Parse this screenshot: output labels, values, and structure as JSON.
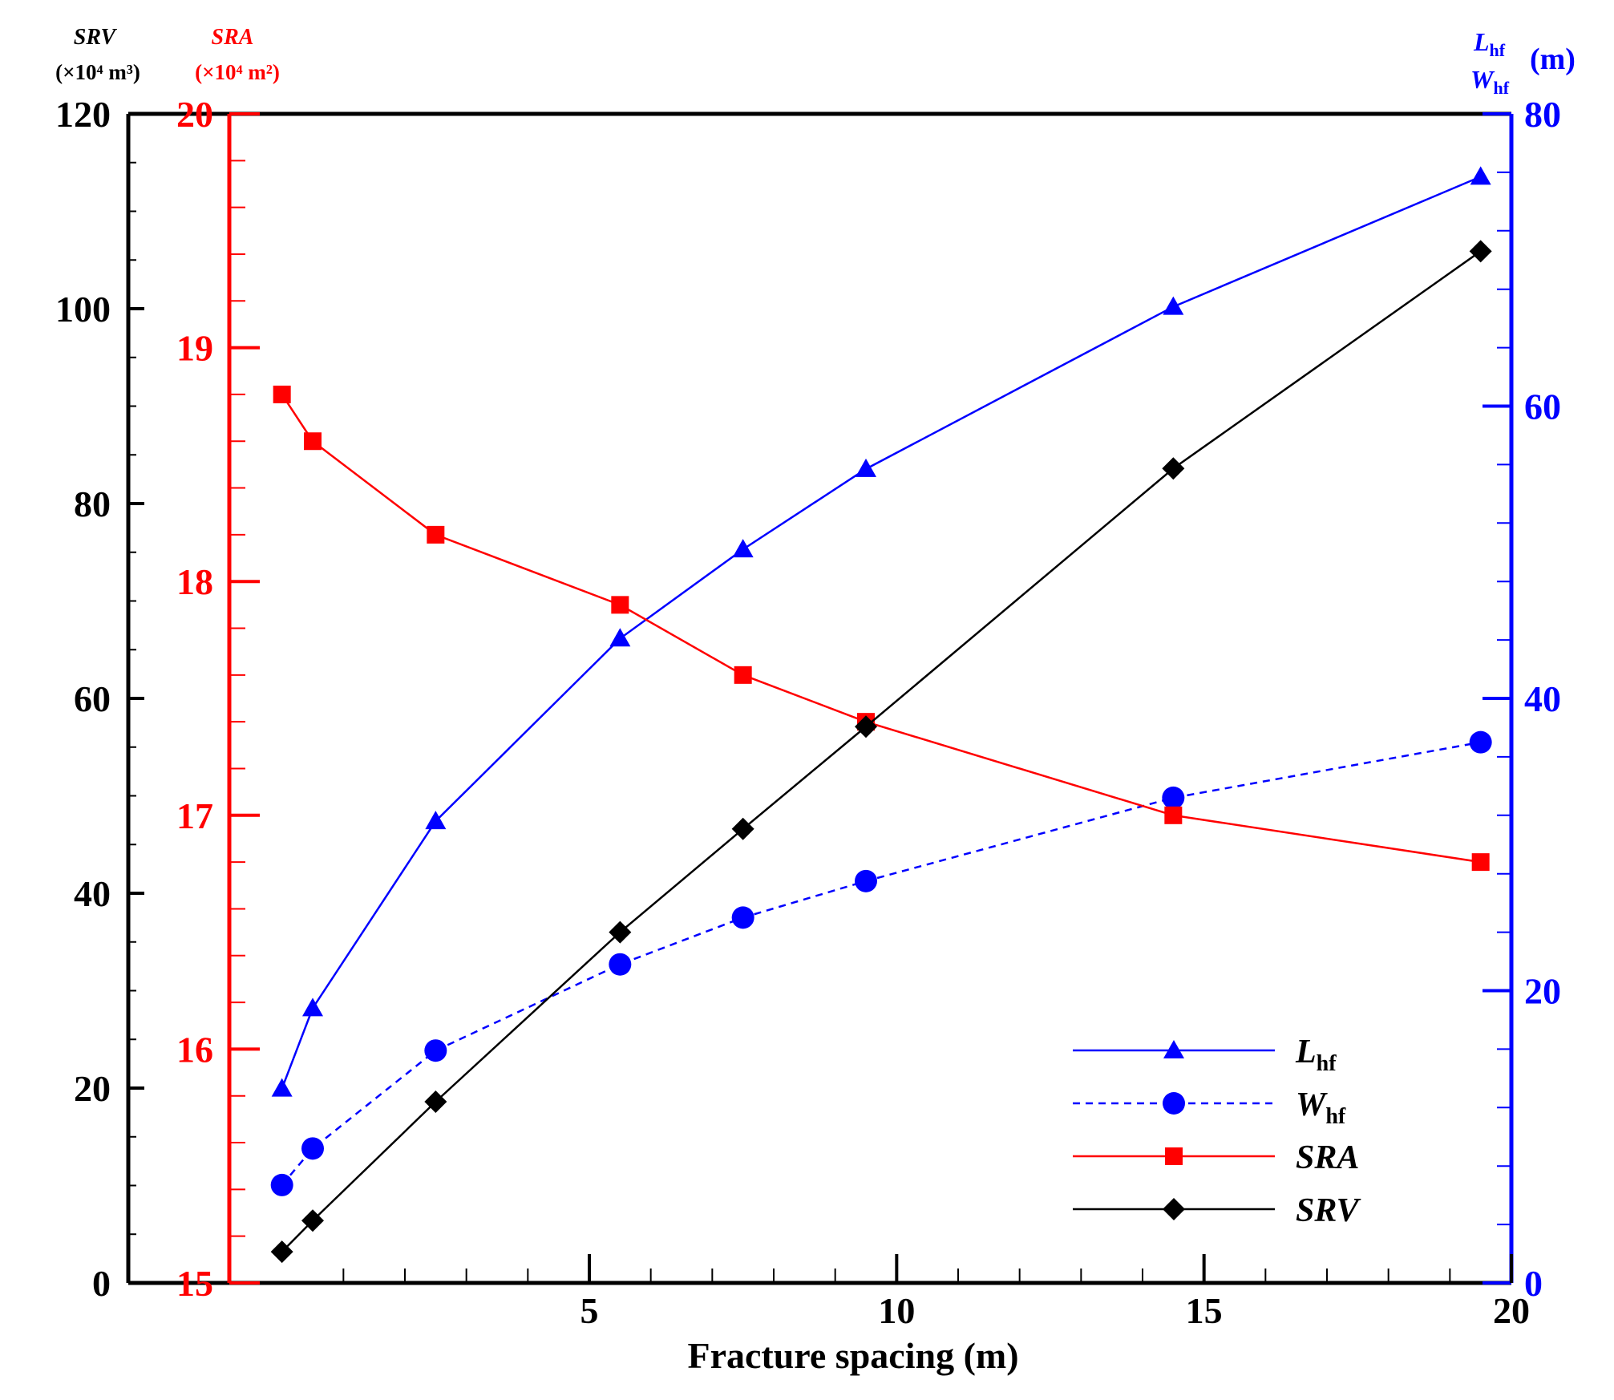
{
  "chart_data": {
    "type": "line",
    "title": "",
    "xlabel": "Fracture spacing (m)",
    "xlim": [
      -2.5,
      20
    ],
    "x_ticks": [
      5,
      10,
      15,
      20
    ],
    "axes": {
      "srv": {
        "name": "SRV",
        "unit": "(×10⁴ m³)",
        "lim": [
          0,
          120
        ],
        "ticks": [
          0,
          20,
          40,
          60,
          80,
          100,
          120
        ],
        "color": "#000000"
      },
      "sra": {
        "name": "SRA",
        "unit": "(×10⁴ m²)",
        "lim": [
          15,
          20
        ],
        "ticks": [
          15,
          16,
          17,
          18,
          19,
          20
        ],
        "color": "#ff0000"
      },
      "lw": {
        "name_l": "L",
        "name_w": "W",
        "sub": "hf",
        "unit": "(m)",
        "lim": [
          0,
          80
        ],
        "ticks": [
          0,
          20,
          40,
          60,
          80
        ],
        "color": "#0000ff"
      }
    },
    "legend_position": "bottom-right",
    "series": [
      {
        "name": "L",
        "sub": "hf",
        "axis": "lw",
        "marker": "triangle",
        "dash": false,
        "color": "#0000ff",
        "x": [
          0,
          0.5,
          2.5,
          5.5,
          7.5,
          9.5,
          14.5,
          19.5
        ],
        "y": [
          13.3,
          18.8,
          31.6,
          44.1,
          50.2,
          55.7,
          66.8,
          75.7
        ]
      },
      {
        "name": "W",
        "sub": "hf",
        "axis": "lw",
        "marker": "circle",
        "dash": true,
        "color": "#0000ff",
        "x": [
          0,
          0.5,
          2.5,
          5.5,
          7.5,
          9.5,
          14.5,
          19.5
        ],
        "y": [
          6.7,
          9.2,
          15.9,
          21.8,
          25.0,
          27.5,
          33.2,
          37.0
        ]
      },
      {
        "name": "SRA",
        "sub": "",
        "axis": "sra",
        "marker": "square",
        "dash": false,
        "color": "#ff0000",
        "x": [
          0,
          0.5,
          2.5,
          5.5,
          7.5,
          9.5,
          14.5,
          19.5
        ],
        "y": [
          18.8,
          18.6,
          18.2,
          17.9,
          17.6,
          17.4,
          17.0,
          16.8
        ]
      },
      {
        "name": "SRV",
        "sub": "",
        "axis": "srv",
        "marker": "diamond",
        "dash": false,
        "color": "#000000",
        "x": [
          0,
          0.5,
          2.5,
          5.5,
          7.5,
          9.5,
          14.5,
          19.5
        ],
        "y": [
          3.2,
          6.4,
          18.6,
          36.0,
          46.6,
          57.1,
          83.6,
          105.9
        ]
      }
    ]
  }
}
